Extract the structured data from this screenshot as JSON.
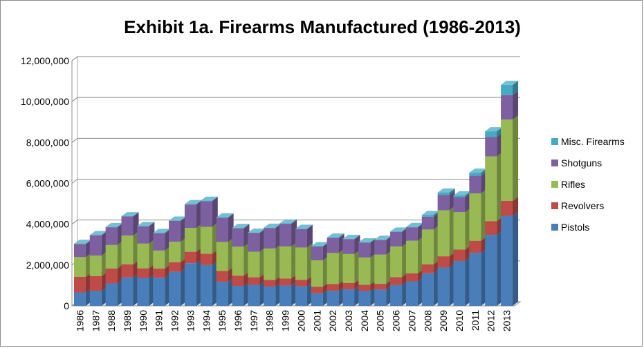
{
  "chart_data": {
    "type": "bar",
    "stacked": true,
    "three_d": true,
    "title": "Exhibit 1a. Firearms Manufactured (1986-2013)",
    "categories": [
      "1986",
      "1987",
      "1988",
      "1989",
      "1990",
      "1991",
      "1992",
      "1993",
      "1994",
      "1995",
      "1996",
      "1997",
      "1998",
      "1999",
      "2000",
      "2001",
      "2002",
      "2003",
      "2004",
      "2005",
      "2006",
      "2007",
      "2008",
      "2009",
      "2010",
      "2011",
      "2012",
      "2013"
    ],
    "ylim": [
      0,
      12000000
    ],
    "yticks": [
      0,
      2000000,
      4000000,
      6000000,
      8000000,
      10000000,
      12000000
    ],
    "ytick_labels": [
      "0",
      "2,000,000",
      "4,000,000",
      "6,000,000",
      "8,000,000",
      "10,000,000",
      "12,000,000"
    ],
    "grid": true,
    "legend_position": "right",
    "series": [
      {
        "name": "Pistols",
        "color": "#4a7ebb",
        "values": [
          660000,
          730000,
          1100000,
          1400000,
          1370000,
          1380000,
          1670000,
          2090000,
          2000000,
          1180000,
          980000,
          1030000,
          950000,
          1000000,
          960000,
          620000,
          740000,
          810000,
          730000,
          800000,
          1020000,
          1200000,
          1600000,
          1880000,
          2200000,
          2600000,
          3480000,
          4410000
        ]
      },
      {
        "name": "Revolvers",
        "color": "#be4b48",
        "values": [
          760000,
          730000,
          730000,
          630000,
          470000,
          450000,
          470000,
          560000,
          550000,
          530000,
          500000,
          370000,
          320000,
          340000,
          320000,
          320000,
          330000,
          310000,
          310000,
          280000,
          390000,
          390000,
          430000,
          550000,
          560000,
          590000,
          670000,
          730000
        ]
      },
      {
        "name": "Rifles",
        "color": "#98b954",
        "values": [
          970000,
          1000000,
          1150000,
          1410000,
          1210000,
          880000,
          1000000,
          1170000,
          1320000,
          1420000,
          1420000,
          1250000,
          1540000,
          1570000,
          1580000,
          1290000,
          1520000,
          1420000,
          1330000,
          1430000,
          1500000,
          1600000,
          1710000,
          2250000,
          1830000,
          2320000,
          3170000,
          3980000
        ]
      },
      {
        "name": "Shotguns",
        "color": "#7d60a0",
        "values": [
          640000,
          1000000,
          870000,
          940000,
          850000,
          850000,
          1020000,
          1140000,
          1250000,
          1180000,
          900000,
          920000,
          1000000,
          1110000,
          900000,
          680000,
          740000,
          730000,
          730000,
          710000,
          710000,
          650000,
          630000,
          750000,
          740000,
          860000,
          950000,
          1200000
        ]
      },
      {
        "name": "Misc. Firearms",
        "color": "#46aac4",
        "values": [
          4000,
          5000,
          7000,
          6000,
          7000,
          10000,
          14000,
          20000,
          25000,
          20000,
          15000,
          14000,
          15000,
          16000,
          15000,
          10000,
          12000,
          10000,
          10000,
          15000,
          20000,
          20000,
          80000,
          120000,
          80000,
          150000,
          280000,
          500000
        ]
      }
    ]
  }
}
